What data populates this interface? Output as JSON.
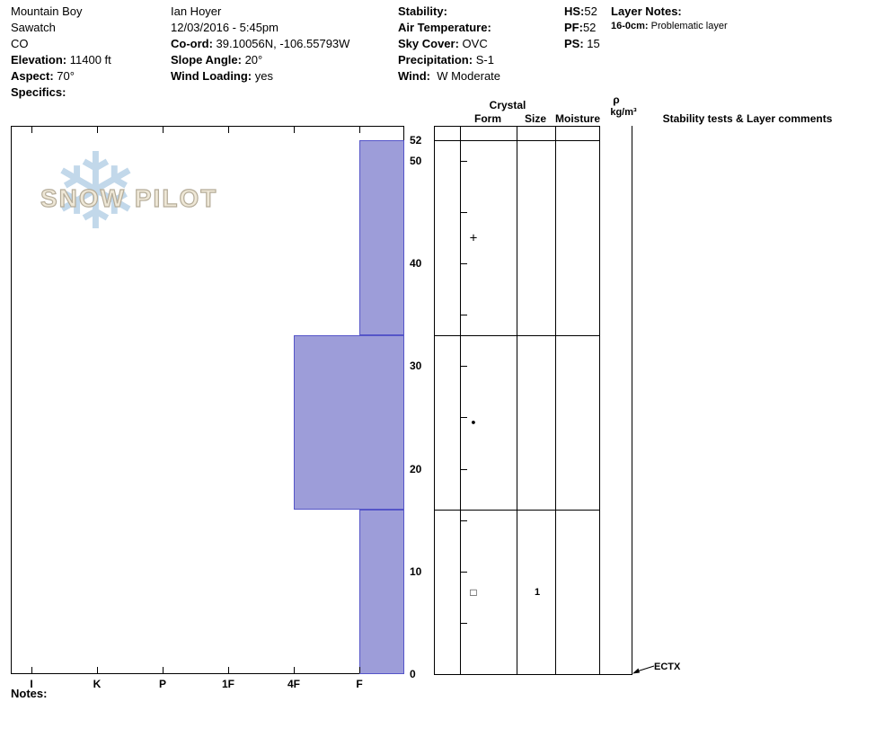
{
  "header": {
    "site": {
      "name": "Mountain Boy",
      "range": "Sawatch",
      "state": "CO",
      "elevation_label": "Elevation:",
      "elevation_value": " 11400 ft",
      "aspect_label": "Aspect:",
      "aspect_value": " 70°",
      "specifics_label": "Specifics:"
    },
    "observation": {
      "observer": "Ian Hoyer",
      "datetime": "12/03/2016 - 5:45pm",
      "coord_label": "Co-ord:",
      "coord_value": " 39.10056N, -106.55793W",
      "slope_angle_label": "Slope Angle:",
      "slope_angle_value": " 20°",
      "wind_loading_label": "Wind Loading:",
      "wind_loading_value": " yes"
    },
    "weather": {
      "stability_label": "Stability:",
      "stability_value": "",
      "air_temperature_label": "Air Temperature:",
      "air_temperature_value": "",
      "sky_cover_label": "Sky Cover:",
      "sky_cover_value": " OVC",
      "precipitation_label": "Precipitation:",
      "precipitation_value": " S-1",
      "wind_label": "Wind:",
      "wind_value": "  W Moderate"
    },
    "totals": {
      "hs_label": "HS:",
      "hs_value": "52",
      "pf_label": "PF:",
      "pf_value": "52",
      "ps_label": "PS:",
      "ps_value": " 15"
    },
    "layer_notes": {
      "label": "Layer Notes:",
      "items": [
        {
          "range": "16-0cm:",
          "text": " Problematic layer"
        }
      ]
    }
  },
  "watermark": {
    "brand": "SNOW PILOT",
    "icon": "snowflake-icon"
  },
  "chart_data": {
    "type": "bar",
    "title": "Snow pit hardness profile",
    "orientation": "horizontal-layer-profile",
    "hardness_scale": [
      "I",
      "K",
      "P",
      "1F",
      "4F",
      "F"
    ],
    "depth_axis_ticks": [
      52,
      50,
      40,
      30,
      20,
      10,
      0
    ],
    "depth_minor_tick_interval_cm": 5,
    "total_depth_cm": 52,
    "depth_units": "cm",
    "bar_fill_color": "#9d9dd9",
    "bar_border_color": "#5555c8",
    "layers": [
      {
        "top_cm": 52,
        "bottom_cm": 33,
        "hardness": "F",
        "grain_form_symbol": "+",
        "grain_form_icon": "plus-crystal-icon",
        "grain_size_mm": "",
        "moisture": ""
      },
      {
        "top_cm": 33,
        "bottom_cm": 16,
        "hardness": "4F",
        "grain_form_symbol": "●",
        "grain_form_icon": "round-crystal-icon",
        "grain_size_mm": "",
        "moisture": ""
      },
      {
        "top_cm": 16,
        "bottom_cm": 0,
        "hardness": "F",
        "grain_form_symbol": "□",
        "grain_form_icon": "facet-crystal-icon",
        "grain_size_mm": "1",
        "moisture": ""
      }
    ],
    "stability_tests": [
      {
        "label": "ECTX",
        "depth_cm": 0
      }
    ]
  },
  "right_panel": {
    "crystal_header": "Crystal",
    "col_form": "Form",
    "col_size": "Size",
    "col_moisture": "Moisture",
    "col_density_symbol": "ρ",
    "col_density_units": "kg/m³",
    "col_comments": "Stability tests & Layer comments"
  },
  "footer": {
    "notes_label": "Notes:"
  }
}
